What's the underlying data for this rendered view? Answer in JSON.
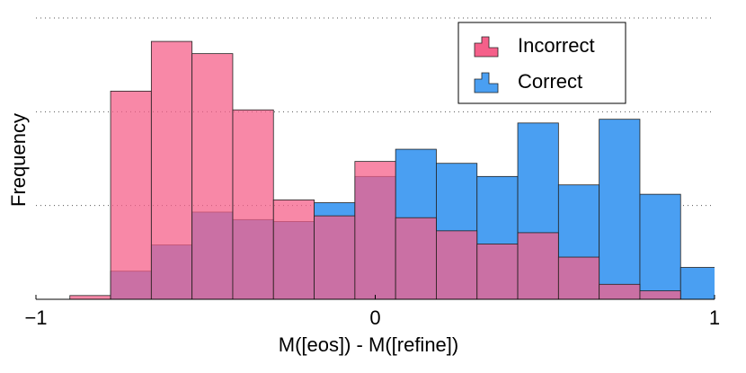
{
  "chart_data": {
    "type": "histogram",
    "xlabel": "M([eos]) - M([refine])",
    "ylabel": "Frequency",
    "bins": [
      -0.9,
      -0.78,
      -0.66,
      -0.54,
      -0.42,
      -0.3,
      -0.18,
      -0.06,
      0.06,
      0.18,
      0.3,
      0.42,
      0.54,
      0.66,
      0.78,
      0.9,
      1.02
    ],
    "series": [
      {
        "name": "Correct",
        "color": "#4a9ff2",
        "values": [
          0,
          0.3,
          0.58,
          0.93,
          0.85,
          0.83,
          1.03,
          1.31,
          1.6,
          1.45,
          1.31,
          1.88,
          1.22,
          1.92,
          1.12,
          0.34
        ]
      },
      {
        "name": "Incorrect",
        "color": "#f5608a",
        "values": [
          0.04,
          2.22,
          2.75,
          2.62,
          2.02,
          1.06,
          0.89,
          1.47,
          0.87,
          0.73,
          0.59,
          0.71,
          0.45,
          0.16,
          0.09,
          0
        ]
      }
    ],
    "legend_order": [
      1,
      0
    ],
    "xlim": [
      -1,
      1
    ],
    "xticks": [
      {
        "value": -1,
        "label": "−1"
      },
      0,
      1
    ],
    "ylim": [
      0,
      3
    ],
    "yticks": [
      0,
      1,
      2,
      3
    ],
    "grid": true,
    "legend": "upper right"
  }
}
